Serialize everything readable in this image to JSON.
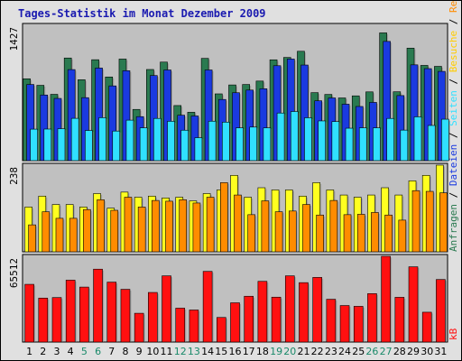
{
  "title": "Tages-Statistik im Monat Dezember 2009",
  "colors": {
    "background": "#e0e0e0",
    "plot_bg": "#c0c0c0",
    "title": "#1a1ab0",
    "anfragen": "#2a7a50",
    "dateien": "#1a3ae0",
    "seiten": "#30e0ff",
    "besuche": "#ffff20",
    "rechner": "#ff8c00",
    "kb": "#ff1010",
    "weekend_day": "#1a8a6a",
    "weekday": "#000000"
  },
  "chart_data": [
    {
      "type": "bar",
      "title": "Tages-Statistik im Monat Dezember 2009",
      "categories": [
        "1",
        "2",
        "3",
        "4",
        "5",
        "6",
        "7",
        "8",
        "9",
        "10",
        "11",
        "12",
        "13",
        "14",
        "15",
        "16",
        "17",
        "18",
        "19",
        "20",
        "21",
        "22",
        "23",
        "24",
        "25",
        "26",
        "27",
        "28",
        "29",
        "30",
        "31"
      ],
      "weekend_days": [
        "5",
        "6",
        "12",
        "13",
        "19",
        "20",
        "26",
        "27"
      ],
      "ylim": [
        0,
        1427
      ],
      "ylabel": "1427",
      "series": [
        {
          "name": "Anfragen",
          "color": "#2a7a50",
          "values": [
            863,
            794,
            699,
            1082,
            853,
            1064,
            882,
            1071,
            540,
            961,
            1039,
            581,
            510,
            1078,
            704,
            798,
            803,
            839,
            1063,
            1088,
            1153,
            717,
            698,
            661,
            683,
            725,
            1347,
            726,
            1186,
            1004,
            994
          ]
        },
        {
          "name": "Dateien",
          "color": "#1a3ae0",
          "values": [
            803,
            692,
            656,
            960,
            664,
            976,
            788,
            948,
            464,
            897,
            956,
            479,
            471,
            956,
            645,
            716,
            744,
            758,
            1001,
            1071,
            1008,
            631,
            661,
            595,
            571,
            614,
            1257,
            686,
            1010,
            970,
            941
          ]
        },
        {
          "name": "Seiten",
          "color": "#30e0ff",
          "values": [
            332,
            333,
            337,
            446,
            318,
            453,
            312,
            427,
            346,
            445,
            415,
            321,
            242,
            416,
            406,
            346,
            354,
            346,
            502,
            518,
            452,
            419,
            412,
            342,
            346,
            346,
            445,
            322,
            462,
            371,
            437
          ]
        }
      ]
    },
    {
      "type": "bar",
      "categories": [
        "1",
        "2",
        "3",
        "4",
        "5",
        "6",
        "7",
        "8",
        "9",
        "10",
        "11",
        "12",
        "13",
        "14",
        "15",
        "16",
        "17",
        "18",
        "19",
        "20",
        "21",
        "22",
        "23",
        "24",
        "25",
        "26",
        "27",
        "28",
        "29",
        "30",
        "31"
      ],
      "ylim": [
        0,
        238
      ],
      "ylabel": "238",
      "series": [
        {
          "name": "Besuche",
          "color": "#ffff20",
          "values": [
            123,
            153,
            130,
            130,
            123,
            160,
            120,
            164,
            150,
            153,
            148,
            150,
            140,
            160,
            170,
            210,
            150,
            176,
            170,
            170,
            153,
            190,
            170,
            156,
            150,
            156,
            176,
            156,
            195,
            210,
            238
          ]
        },
        {
          "name": "Rechner",
          "color": "#ff8c00",
          "values": [
            74,
            110,
            92,
            92,
            116,
            143,
            114,
            150,
            123,
            141,
            139,
            143,
            134,
            150,
            190,
            156,
            102,
            140,
            110,
            112,
            130,
            101,
            141,
            102,
            103,
            108,
            101,
            87,
            168,
            166,
            162
          ]
        }
      ]
    },
    {
      "type": "bar",
      "categories": [
        "1",
        "2",
        "3",
        "4",
        "5",
        "6",
        "7",
        "8",
        "9",
        "10",
        "11",
        "12",
        "13",
        "14",
        "15",
        "16",
        "17",
        "18",
        "19",
        "20",
        "21",
        "22",
        "23",
        "24",
        "25",
        "26",
        "27",
        "28",
        "29",
        "30",
        "31"
      ],
      "ylim": [
        0,
        65512
      ],
      "ylabel": "65512",
      "series": [
        {
          "name": "kB",
          "color": "#ff1010",
          "values": [
            44100,
            33600,
            34000,
            47300,
            42000,
            55700,
            45800,
            40300,
            22000,
            37900,
            50600,
            25900,
            24500,
            54000,
            18800,
            30000,
            35000,
            46400,
            34300,
            50600,
            45400,
            49400,
            32700,
            27900,
            27300,
            37000,
            65512,
            34200,
            57500,
            22800,
            47800
          ]
        }
      ]
    }
  ],
  "right_labels": [
    {
      "text": "Anfragen",
      "color": "#2a7a50"
    },
    {
      "text": " / ",
      "color": "#000000"
    },
    {
      "text": "Dateien",
      "color": "#1a3ae0"
    },
    {
      "text": " / ",
      "color": "#000000"
    },
    {
      "text": "Seiten",
      "color": "#30e0ff"
    },
    {
      "text": " / ",
      "color": "#000000"
    },
    {
      "text": "Besuche",
      "color": "#ffcc00"
    },
    {
      "text": " / ",
      "color": "#000000"
    },
    {
      "text": "Rechner",
      "color": "#ff8c00"
    },
    {
      "text": "kB",
      "color": "#ff1010"
    }
  ]
}
